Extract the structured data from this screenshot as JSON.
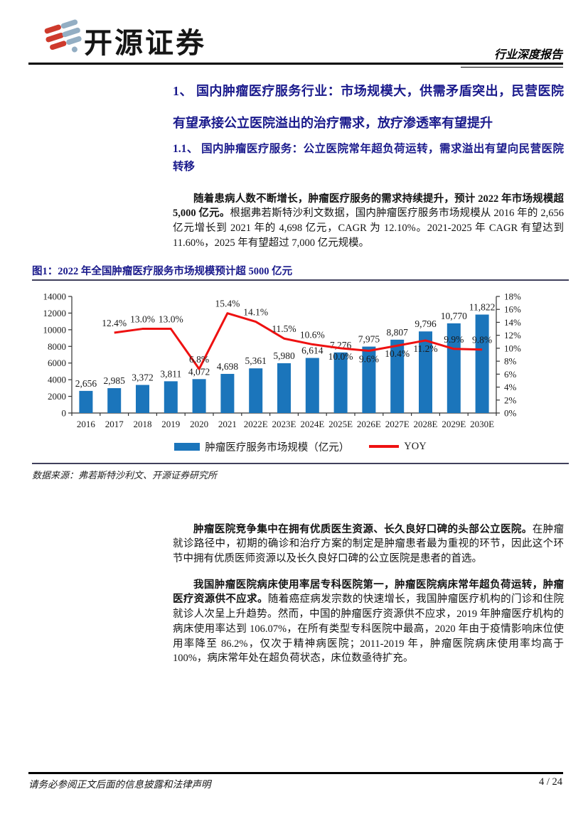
{
  "header": {
    "brand": "开源证券",
    "report_type": "行业深度报告"
  },
  "section": {
    "h1": "1、 国内肿瘤医疗服务行业：市场规模大，供需矛盾突出，民营医院有望承接公立医院溢出的治疗需求，放疗渗透率有望提升",
    "h2": "1.1、 国内肿瘤医疗服务：公立医院常年超负荷运转，需求溢出有望向民营医院转移"
  },
  "paragraphs": [
    {
      "bold": "随着患病人数不断增长，肿瘤医疗服务的需求持续提升，预计 2022 年市场规模超 5,000 亿元。",
      "text": "根据弗若斯特沙利文数据，国内肿瘤医疗服务市场规模从 2016 年的 2,656 亿元增长到 2021 年的 4,698 亿元，CAGR 为 12.10%。2021-2025 年 CAGR 有望达到 11.60%，2025 年有望超过 7,000 亿元规模。"
    },
    {
      "bold": "肿瘤医院竞争集中在拥有优质医生资源、长久良好口碑的头部公立医院。",
      "text": "在肿瘤就诊路径中，初期的确诊和治疗方案的制定是肿瘤患者最为重视的环节，因此这个环节中拥有优质医师资源以及长久良好口碑的公立医院是患者的首选。"
    },
    {
      "bold": "我国肿瘤医院病床使用率居专科医院第一，肿瘤医院病床常年超负荷运转，肿瘤医疗资源供不应求。",
      "text": "随着癌症病发宗数的快速增长，我国肿瘤医疗机构的门诊和住院就诊人次呈上升趋势。然而，中国的肿瘤医疗资源供不应求，2019 年肿瘤医疗机构的病床使用率达到 106.07%，在所有类型专科医院中最高，2020 年由于疫情影响床位使用率降至 86.2%，仅次于精神病医院；2011-2019 年，肿瘤医院病床使用率均高于 100%，病床常年处在超负荷状态，床位数亟待扩充。"
    }
  ],
  "figure": {
    "title": "图1：2022 年全国肿瘤医疗服务市场规模预计超 5000 亿元",
    "source": "数据来源：弗若斯特沙利文、开源证券研究所"
  },
  "chart_data": {
    "type": "bar+line",
    "categories": [
      "2016",
      "2017",
      "2018",
      "2019",
      "2020",
      "2021",
      "2022E",
      "2023E",
      "2024E",
      "2025E",
      "2026E",
      "2027E",
      "2028E",
      "2029E",
      "2030E"
    ],
    "series": [
      {
        "name": "肿瘤医疗服务市场规模（亿元）",
        "type": "bar",
        "color": "#1B75BB",
        "values": [
          2656,
          2985,
          3372,
          3811,
          4072,
          4698,
          5361,
          5980,
          6614,
          7276,
          7975,
          8807,
          9796,
          10770,
          11822
        ]
      },
      {
        "name": "YOY",
        "type": "line",
        "color": "#EE1111",
        "axis": "right",
        "values": [
          null,
          12.4,
          13.0,
          13.0,
          6.8,
          15.4,
          14.1,
          11.5,
          10.6,
          10.0,
          9.6,
          10.4,
          11.2,
          9.9,
          9.8
        ]
      }
    ],
    "left_axis": {
      "min": 0,
      "max": 14000,
      "step": 2000
    },
    "right_axis": {
      "min": 0,
      "max": 18,
      "step": 2,
      "suffix": "%"
    },
    "label_below_indices": [
      9,
      10,
      11,
      12
    ],
    "legend_position": "bottom",
    "grid": false
  },
  "footer": {
    "disclaimer": "请务必参阅正文后面的信息披露和法律声明",
    "page": "4 / 24"
  }
}
